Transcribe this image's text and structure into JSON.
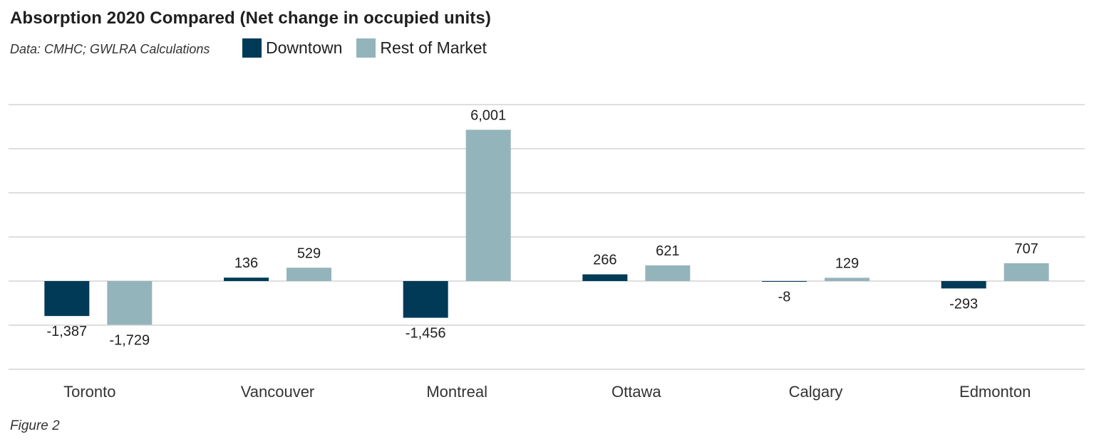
{
  "title": "Absorption 2020 Compared (Net change in occupied units)",
  "source": "Data: CMHC; GWLRA Calculations",
  "figure_label": "Figure 2",
  "legend": [
    {
      "name": "Downtown",
      "color": "#003a57"
    },
    {
      "name": "Rest of Market",
      "color": "#94b4bb"
    }
  ],
  "chart_data": {
    "type": "bar",
    "categories": [
      "Toronto",
      "Vancouver",
      "Montreal",
      "Ottawa",
      "Calgary",
      "Edmonton"
    ],
    "series": [
      {
        "name": "Downtown",
        "color": "#003a57",
        "values": [
          -1387,
          136,
          -1456,
          266,
          -8,
          -293
        ],
        "labels": [
          "-1,387",
          "136",
          "-1,456",
          "266",
          "-8",
          "-293"
        ]
      },
      {
        "name": "Rest of Market",
        "color": "#94b4bb",
        "values": [
          -1729,
          529,
          6001,
          621,
          129,
          707
        ],
        "labels": [
          "-1,729",
          "529",
          "6,001",
          "621",
          "129",
          "707"
        ]
      }
    ],
    "ylim": [
      -3500,
      7000
    ],
    "grid": true,
    "legend_position": "top-left"
  }
}
